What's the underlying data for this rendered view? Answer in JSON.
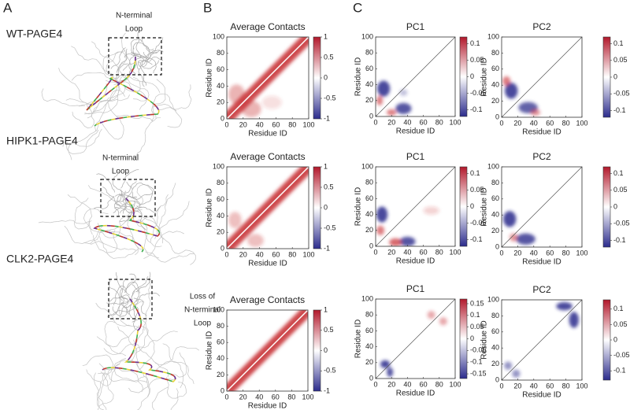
{
  "panel_labels": [
    "A",
    "B",
    "C"
  ],
  "structures": [
    {
      "name": "WT-PAGE4",
      "annotation": [
        "N-terminal",
        "Loop"
      ]
    },
    {
      "name": "HIPK1-PAGE4",
      "annotation": [
        "N-terminal",
        "Loop"
      ]
    },
    {
      "name": "CLK2-PAGE4",
      "annotation": [
        "Loss of",
        "N-terminal",
        "Loop"
      ]
    }
  ],
  "heatmaps": [
    [
      {
        "title": "Average Contacts",
        "xlabel": "Residue ID",
        "ylabel": "Residue ID",
        "xlim": [
          0,
          100
        ],
        "ylim": [
          0,
          100
        ],
        "xticks": [
          0,
          20,
          40,
          60,
          80,
          100
        ],
        "yticks": [
          0,
          20,
          40,
          60,
          80,
          100
        ],
        "clim": [
          -1,
          1
        ],
        "cticks": [
          1,
          0.5,
          0,
          -0.5,
          -1
        ]
      },
      {
        "title": "PC1",
        "xlabel": "Residue ID",
        "ylabel": "Residue ID",
        "xlim": [
          0,
          100
        ],
        "ylim": [
          0,
          100
        ],
        "xticks": [
          0,
          20,
          40,
          60,
          80,
          100
        ],
        "yticks": [
          0,
          20,
          40,
          60,
          80,
          100
        ],
        "clim": [
          -0.12,
          0.12
        ],
        "cticks": [
          0.1,
          0.05,
          0,
          -0.05,
          -0.1
        ]
      },
      {
        "title": "PC2",
        "xlabel": "Residue ID",
        "ylabel": "Residue ID",
        "xlim": [
          0,
          100
        ],
        "ylim": [
          0,
          100
        ],
        "xticks": [
          0,
          20,
          40,
          60,
          80,
          100
        ],
        "yticks": [
          0,
          20,
          40,
          60,
          80,
          100
        ],
        "clim": [
          -0.12,
          0.12
        ],
        "cticks": [
          0.1,
          0.05,
          0,
          -0.05,
          -0.1
        ]
      }
    ],
    [
      {
        "title": "Average Contacts",
        "xlabel": "Residue ID",
        "ylabel": "Residue ID",
        "xlim": [
          0,
          100
        ],
        "ylim": [
          0,
          100
        ],
        "xticks": [
          0,
          20,
          40,
          60,
          80,
          100
        ],
        "yticks": [
          0,
          20,
          40,
          60,
          80,
          100
        ],
        "clim": [
          -1,
          1
        ],
        "cticks": [
          1,
          0.5,
          0,
          -0.5,
          -1
        ]
      },
      {
        "title": "PC1",
        "xlabel": "Residue ID",
        "ylabel": "Residue ID",
        "xlim": [
          0,
          100
        ],
        "ylim": [
          0,
          100
        ],
        "xticks": [
          0,
          20,
          40,
          60,
          80,
          100
        ],
        "yticks": [
          0,
          20,
          40,
          60,
          80,
          100
        ],
        "clim": [
          -0.12,
          0.12
        ],
        "cticks": [
          0.1,
          0.05,
          0,
          -0.05,
          -0.1
        ]
      },
      {
        "title": "PC2",
        "xlabel": "Residue ID",
        "ylabel": "Residue ID",
        "xlim": [
          0,
          100
        ],
        "ylim": [
          0,
          100
        ],
        "xticks": [
          0,
          20,
          40,
          60,
          80,
          100
        ],
        "yticks": [
          0,
          20,
          40,
          60,
          80,
          100
        ],
        "clim": [
          -0.12,
          0.12
        ],
        "cticks": [
          0.1,
          0.05,
          0,
          -0.05,
          -0.1
        ]
      }
    ],
    [
      {
        "title": "Average Contacts",
        "xlabel": "Residue ID",
        "ylabel": "Residue ID",
        "xlim": [
          0,
          100
        ],
        "ylim": [
          0,
          100
        ],
        "xticks": [
          0,
          20,
          40,
          60,
          80,
          100
        ],
        "yticks": [
          0,
          20,
          40,
          60,
          80,
          100
        ],
        "clim": [
          -1,
          1
        ],
        "cticks": [
          1,
          0.5,
          0,
          -0.5,
          -1
        ]
      },
      {
        "title": "PC1",
        "xlabel": "Residue ID",
        "ylabel": "Residue ID",
        "xlim": [
          0,
          100
        ],
        "ylim": [
          0,
          100
        ],
        "xticks": [
          0,
          20,
          40,
          60,
          80,
          100
        ],
        "yticks": [
          0,
          20,
          40,
          60,
          80,
          100
        ],
        "clim": [
          -0.17,
          0.17
        ],
        "cticks": [
          0.15,
          0.1,
          0.05,
          0,
          -0.05,
          -0.1,
          -0.15
        ]
      },
      {
        "title": "PC2",
        "xlabel": "Residue ID",
        "ylabel": "Residue ID",
        "xlim": [
          0,
          100
        ],
        "ylim": [
          0,
          100
        ],
        "xticks": [
          0,
          20,
          40,
          60,
          80,
          100
        ],
        "yticks": [
          0,
          20,
          40,
          60,
          80,
          100
        ],
        "clim": [
          -0.13,
          0.13
        ],
        "cticks": [
          0.1,
          0.05,
          0,
          -0.05,
          -0.1
        ]
      }
    ]
  ]
}
